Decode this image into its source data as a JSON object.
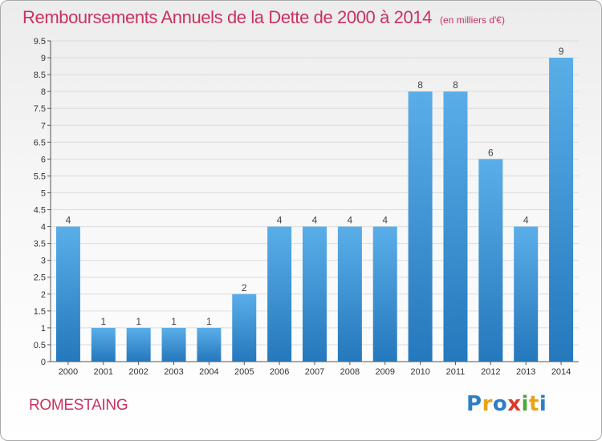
{
  "header": {
    "title": "Remboursements Annuels de la Dette de 2000 à 2014",
    "unit": "(en milliers d'€)"
  },
  "footer": {
    "commune": "ROMESTAING",
    "logo": "Proxiti"
  },
  "colors": {
    "title": "#c8325f",
    "bar_top": "#5aaee8",
    "bar_bottom": "#2478bc",
    "grid": "#dcdcdc"
  },
  "chart_data": {
    "type": "bar",
    "categories": [
      "2000",
      "2001",
      "2002",
      "2003",
      "2004",
      "2005",
      "2006",
      "2007",
      "2008",
      "2009",
      "2010",
      "2011",
      "2012",
      "2013",
      "2014"
    ],
    "values": [
      4,
      1,
      1,
      1,
      1,
      2,
      4,
      4,
      4,
      4,
      8,
      8,
      6,
      4,
      9
    ],
    "data_labels": [
      "4",
      "1",
      "1",
      "1",
      "1",
      "2",
      "4",
      "4",
      "4",
      "4",
      "8",
      "8",
      "6",
      "4",
      "9"
    ],
    "yticks": [
      "0",
      "0.5",
      "1",
      "1.5",
      "2",
      "2.5",
      "3",
      "3.5",
      "4",
      "4.5",
      "5",
      "5.5",
      "6",
      "6.5",
      "7",
      "7.5",
      "8",
      "8.5",
      "9",
      "9.5"
    ],
    "ylim": [
      0,
      9.5
    ],
    "grid": true,
    "xlabel": "",
    "ylabel": ""
  }
}
